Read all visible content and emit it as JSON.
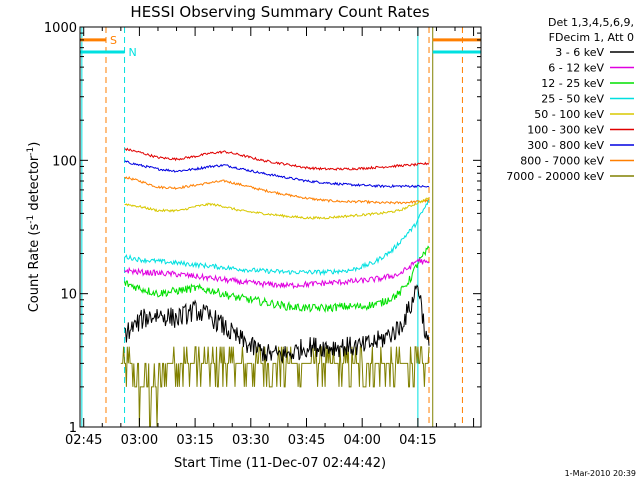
{
  "footer_timestamp": "1-Mar-2010 20:39",
  "chart_data": {
    "type": "line",
    "title": "HESSI Observing Summary Count Rates",
    "xlabel": "Start Time (11-Dec-07 02:44:42)",
    "ylabel_main": "Count Rate (s",
    "ylabel_sup1": "-1",
    "ylabel_mid": " detector",
    "ylabel_sup2": "-1",
    "ylabel_end": ")",
    "y_scale": "log",
    "ylim": [
      1,
      1000
    ],
    "yticks": [
      {
        "value": 1,
        "label": "1"
      },
      {
        "value": 10,
        "label": "10"
      },
      {
        "value": 100,
        "label": "100"
      },
      {
        "value": 1000,
        "label": "1000"
      }
    ],
    "xlim_minutes": [
      -1,
      107
    ],
    "xticks": [
      {
        "value": 0,
        "label": "02:45"
      },
      {
        "value": 15,
        "label": "03:00"
      },
      {
        "value": 30,
        "label": "03:15"
      },
      {
        "value": 45,
        "label": "03:30"
      },
      {
        "value": 60,
        "label": "03:45"
      },
      {
        "value": 75,
        "label": "04:00"
      },
      {
        "value": 90,
        "label": "04:15"
      }
    ],
    "legend": {
      "placement": "right",
      "header": [
        "Det 1,3,4,5,6,9,",
        "FDecim 1, Att 0"
      ],
      "entries": [
        {
          "label": "3 - 6 keV",
          "color": "#000000"
        },
        {
          "label": "6 - 12 keV",
          "color": "#e000e0"
        },
        {
          "label": "12 - 25 keV",
          "color": "#00e000"
        },
        {
          "label": "25 - 50 keV",
          "color": "#00e0e0"
        },
        {
          "label": "50 - 100 keV",
          "color": "#d8c800"
        },
        {
          "label": "100 - 300 keV",
          "color": "#e00000"
        },
        {
          "label": "300 - 800 keV",
          "color": "#0000e0"
        },
        {
          "label": "800 - 7000 keV",
          "color": "#ff7f00"
        },
        {
          "label": "7000 - 20000 keV",
          "color": "#808000"
        }
      ]
    },
    "flags": [
      {
        "label": "S",
        "color": "#ff7f00",
        "y_value": 800,
        "x_start": -1,
        "x_end": 6
      },
      {
        "label": "N",
        "color": "#00e0e0",
        "y_value": 650,
        "x_start": -1,
        "x_end": 11
      },
      {
        "label": "",
        "color": "#ff7f00",
        "y_value": 800,
        "x_start": 94,
        "x_end": 107
      },
      {
        "label": "",
        "color": "#00e0e0",
        "y_value": 650,
        "x_start": 94,
        "x_end": 107
      }
    ],
    "markers": [
      {
        "x": -0.5,
        "color": "#00e0e0",
        "style": "solid"
      },
      {
        "x": 6,
        "color": "#ff7f00",
        "style": "dashed"
      },
      {
        "x": 11,
        "color": "#00e0e0",
        "style": "dashed"
      },
      {
        "x": 90,
        "color": "#00e0e0",
        "style": "solid"
      },
      {
        "x": 93,
        "color": "#ff7f00",
        "style": "dashed"
      },
      {
        "x": 94,
        "color": "#808000",
        "style": "solid"
      },
      {
        "x": 102,
        "color": "#ff7f00",
        "style": "dashed"
      }
    ],
    "series": [
      {
        "name": "3 - 6 keV",
        "color": "#000000",
        "noise": 0.18,
        "x_start": 11,
        "x_end": 93,
        "points": [
          [
            11,
            5
          ],
          [
            13,
            5.5
          ],
          [
            16,
            6.5
          ],
          [
            20,
            7
          ],
          [
            25,
            6.5
          ],
          [
            30,
            7.5
          ],
          [
            35,
            6.5
          ],
          [
            40,
            5
          ],
          [
            45,
            4
          ],
          [
            50,
            3.5
          ],
          [
            55,
            3.5
          ],
          [
            60,
            4
          ],
          [
            65,
            4
          ],
          [
            70,
            4
          ],
          [
            75,
            4
          ],
          [
            80,
            4.5
          ],
          [
            85,
            5.5
          ],
          [
            88,
            8
          ],
          [
            90,
            12
          ],
          [
            91,
            8
          ],
          [
            92,
            5
          ],
          [
            93,
            4
          ]
        ]
      },
      {
        "name": "6 - 12 keV",
        "color": "#e000e0",
        "noise": 0.05,
        "x_start": 11,
        "x_end": 93,
        "points": [
          [
            11,
            15
          ],
          [
            15,
            14.5
          ],
          [
            25,
            14
          ],
          [
            35,
            13
          ],
          [
            45,
            12
          ],
          [
            55,
            11.5
          ],
          [
            65,
            12
          ],
          [
            75,
            12.5
          ],
          [
            80,
            13
          ],
          [
            85,
            14
          ],
          [
            88,
            16
          ],
          [
            90,
            18
          ],
          [
            92,
            17
          ],
          [
            93,
            17
          ]
        ]
      },
      {
        "name": "12 - 25 keV",
        "color": "#00e000",
        "noise": 0.07,
        "x_start": 11,
        "x_end": 93,
        "points": [
          [
            11,
            12
          ],
          [
            15,
            11
          ],
          [
            20,
            10
          ],
          [
            25,
            10.5
          ],
          [
            30,
            11
          ],
          [
            35,
            10.5
          ],
          [
            40,
            9.5
          ],
          [
            45,
            9
          ],
          [
            50,
            8.5
          ],
          [
            55,
            8
          ],
          [
            60,
            7.8
          ],
          [
            65,
            7.8
          ],
          [
            70,
            8
          ],
          [
            75,
            8
          ],
          [
            80,
            8.5
          ],
          [
            85,
            10
          ],
          [
            88,
            13
          ],
          [
            90,
            17
          ],
          [
            92,
            20
          ],
          [
            93,
            22
          ]
        ]
      },
      {
        "name": "25 - 50 keV",
        "color": "#00e0e0",
        "noise": 0.04,
        "x_start": 11,
        "x_end": 93,
        "points": [
          [
            11,
            19
          ],
          [
            15,
            18
          ],
          [
            25,
            17
          ],
          [
            35,
            16
          ],
          [
            45,
            15
          ],
          [
            55,
            14.5
          ],
          [
            65,
            14.5
          ],
          [
            72,
            15
          ],
          [
            78,
            17
          ],
          [
            83,
            21
          ],
          [
            86,
            26
          ],
          [
            89,
            32
          ],
          [
            91,
            40
          ],
          [
            93,
            50
          ]
        ]
      },
      {
        "name": "50 - 100 keV",
        "color": "#d8c800",
        "noise": 0.02,
        "x_start": 11,
        "x_end": 93,
        "points": [
          [
            11,
            47
          ],
          [
            15,
            45
          ],
          [
            20,
            42
          ],
          [
            26,
            42
          ],
          [
            30,
            45
          ],
          [
            34,
            47
          ],
          [
            38,
            45
          ],
          [
            42,
            42
          ],
          [
            48,
            40
          ],
          [
            55,
            38
          ],
          [
            60,
            37
          ],
          [
            65,
            37
          ],
          [
            70,
            38
          ],
          [
            75,
            39
          ],
          [
            80,
            40
          ],
          [
            85,
            42
          ],
          [
            90,
            48
          ],
          [
            93,
            52
          ]
        ]
      },
      {
        "name": "100 - 300 keV",
        "color": "#e00000",
        "noise": 0.02,
        "x_start": 11,
        "x_end": 93,
        "points": [
          [
            11,
            122
          ],
          [
            15,
            115
          ],
          [
            20,
            105
          ],
          [
            25,
            102
          ],
          [
            30,
            107
          ],
          [
            34,
            113
          ],
          [
            38,
            116
          ],
          [
            42,
            110
          ],
          [
            48,
            100
          ],
          [
            55,
            93
          ],
          [
            60,
            88
          ],
          [
            65,
            86
          ],
          [
            70,
            86
          ],
          [
            75,
            87
          ],
          [
            80,
            89
          ],
          [
            85,
            91
          ],
          [
            90,
            93
          ],
          [
            93,
            95
          ]
        ]
      },
      {
        "name": "300 - 800 keV",
        "color": "#0000e0",
        "noise": 0.02,
        "x_start": 11,
        "x_end": 93,
        "points": [
          [
            11,
            98
          ],
          [
            15,
            92
          ],
          [
            20,
            86
          ],
          [
            25,
            83
          ],
          [
            30,
            86
          ],
          [
            34,
            90
          ],
          [
            38,
            92
          ],
          [
            42,
            87
          ],
          [
            48,
            80
          ],
          [
            55,
            74
          ],
          [
            60,
            70
          ],
          [
            65,
            68
          ],
          [
            70,
            66
          ],
          [
            75,
            65
          ],
          [
            80,
            64
          ],
          [
            85,
            64
          ],
          [
            90,
            64
          ],
          [
            93,
            63
          ]
        ]
      },
      {
        "name": "800 - 7000 keV",
        "color": "#ff7f00",
        "noise": 0.02,
        "x_start": 11,
        "x_end": 93,
        "points": [
          [
            11,
            75
          ],
          [
            15,
            70
          ],
          [
            20,
            63
          ],
          [
            25,
            62
          ],
          [
            30,
            65
          ],
          [
            34,
            68
          ],
          [
            38,
            70
          ],
          [
            42,
            66
          ],
          [
            48,
            60
          ],
          [
            55,
            55
          ],
          [
            60,
            52
          ],
          [
            65,
            50
          ],
          [
            70,
            49
          ],
          [
            75,
            49
          ],
          [
            80,
            48
          ],
          [
            85,
            48
          ],
          [
            90,
            49
          ],
          [
            93,
            50
          ]
        ]
      },
      {
        "name": "7000 - 20000 keV",
        "color": "#808000",
        "noise": 0.0,
        "x_start": 10,
        "x_end": 93,
        "points": [
          [
            10,
            3
          ],
          [
            14,
            2.5
          ],
          [
            18,
            2
          ],
          [
            24,
            3
          ],
          [
            30,
            3.5
          ],
          [
            36,
            3.2
          ],
          [
            42,
            3
          ],
          [
            50,
            2.8
          ],
          [
            60,
            2.8
          ],
          [
            70,
            3
          ],
          [
            80,
            2.5
          ],
          [
            88,
            2.5
          ],
          [
            93,
            3
          ]
        ]
      }
    ]
  }
}
